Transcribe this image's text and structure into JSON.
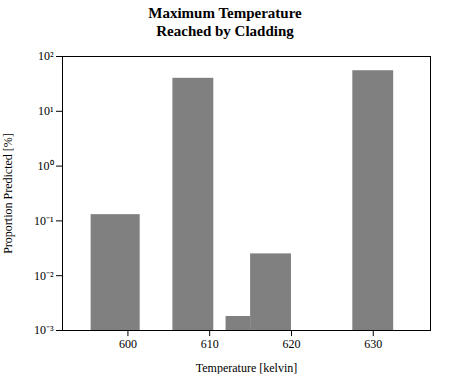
{
  "chart_data": {
    "type": "bar",
    "title": "Maximum Temperature\nReached by Cladding",
    "xlabel": "Temperature [kelvin]",
    "ylabel": "Proportion Predicted [%]",
    "x": [
      598.5,
      608.0,
      613.5,
      617.5,
      630.0
    ],
    "widths": [
      6,
      5,
      3,
      5,
      5
    ],
    "values": [
      0.13,
      40.0,
      0.0018,
      0.025,
      55.0
    ],
    "color": "#808080",
    "xlim": [
      592,
      637
    ],
    "ylim": [
      0.001,
      100
    ],
    "xticks": [
      600,
      610,
      620,
      630
    ],
    "yticks": [
      {
        "value": 0.001,
        "label": "10⁻³"
      },
      {
        "value": 0.01,
        "label": "10⁻²"
      },
      {
        "value": 0.1,
        "label": "10⁻¹"
      },
      {
        "value": 1,
        "label": "10⁰"
      },
      {
        "value": 10,
        "label": "10¹"
      },
      {
        "value": 100,
        "label": "10²"
      }
    ],
    "log": "y"
  }
}
